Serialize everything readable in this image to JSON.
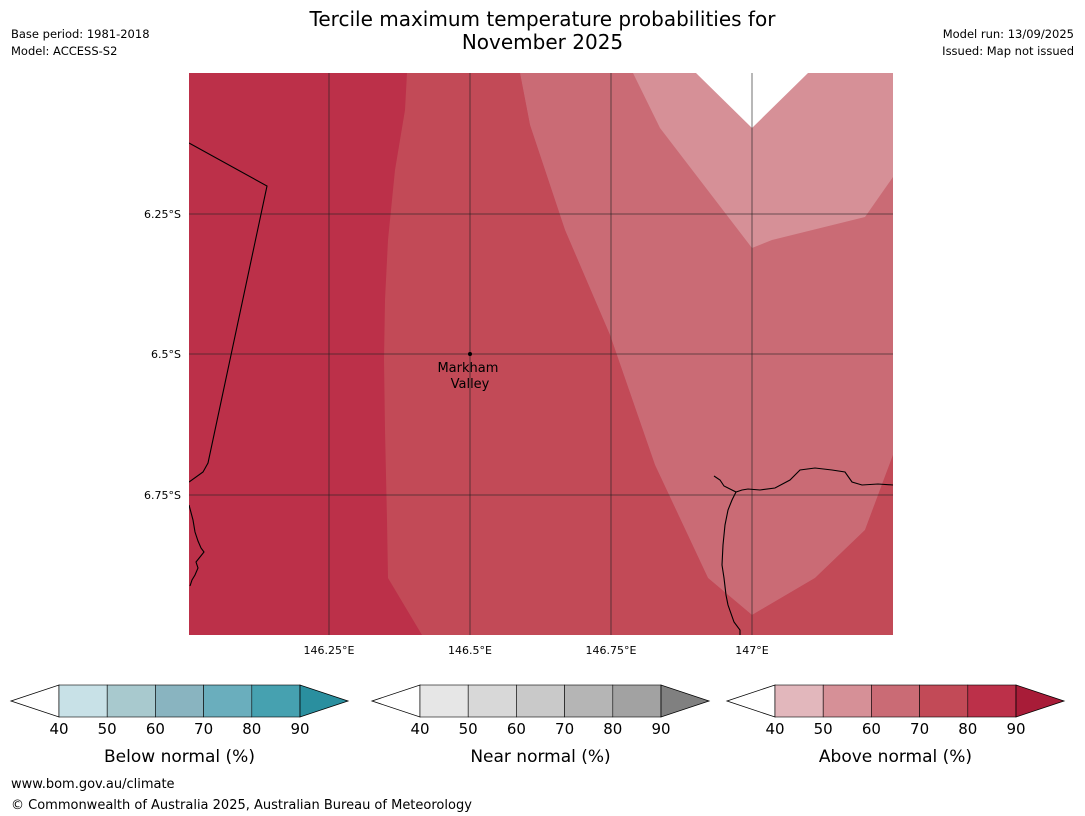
{
  "header": {
    "title_line1": "Tercile maximum temperature probabilities for",
    "title_line2": "November 2025",
    "base_period": "Base period: 1981-2018",
    "model": "Model: ACCESS-S2",
    "model_run": "Model run: 13/09/2025",
    "issued": "Issued: Map not issued"
  },
  "map": {
    "lat_ticks": [
      "6.25°S",
      "6.5°S",
      "6.75°S"
    ],
    "lon_ticks": [
      "146.25°E",
      "146.5°E",
      "146.75°E",
      "147°E"
    ],
    "place": {
      "name_line1": "Markham",
      "name_line2": "Valley"
    },
    "colors": {
      "above_90": "#bc3049",
      "above_80": "#c24a57",
      "above_70": "#ca6b75",
      "above_60": "#d69097",
      "no_data": "#ffffff"
    }
  },
  "legends": [
    {
      "label": "Below normal (%)",
      "ticks": [
        "40",
        "50",
        "60",
        "70",
        "80",
        "90"
      ],
      "colors": [
        "#c8e1e7",
        "#a8c9ce",
        "#89b4c0",
        "#6aaebd",
        "#46a1b0"
      ],
      "over_color": "#2a8f9f"
    },
    {
      "label": "Near normal (%)",
      "ticks": [
        "40",
        "50",
        "60",
        "70",
        "80",
        "90"
      ],
      "colors": [
        "#e6e6e6",
        "#d8d8d8",
        "#c9c9c9",
        "#b5b5b5",
        "#a2a2a2"
      ],
      "over_color": "#808080"
    },
    {
      "label": "Above normal (%)",
      "ticks": [
        "40",
        "50",
        "60",
        "70",
        "80",
        "90"
      ],
      "colors": [
        "#e2b7bc",
        "#d69097",
        "#ca6b75",
        "#c24a57",
        "#bc3049"
      ],
      "over_color": "#a81c38"
    }
  ],
  "footer": {
    "url": "www.bom.gov.au/climate",
    "copyright": "© Commonwealth of Australia 2025, Australian Bureau of Meteorology"
  }
}
